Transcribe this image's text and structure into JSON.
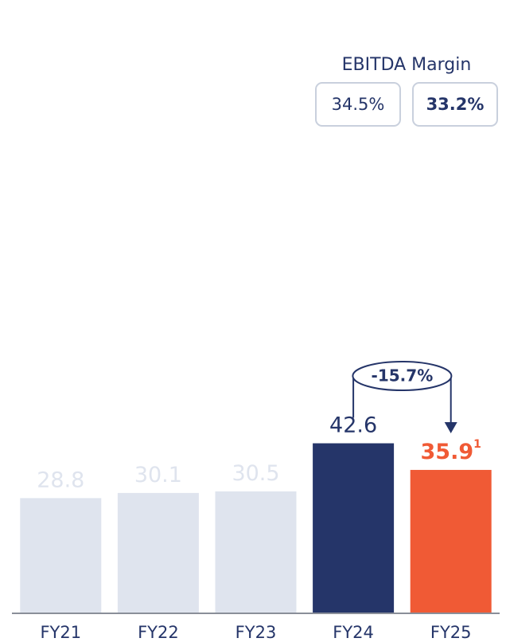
{
  "chart_data": {
    "type": "bar",
    "categories": [
      "FY21",
      "FY22",
      "FY23",
      "FY24",
      "FY25"
    ],
    "values": [
      28.8,
      30.1,
      30.5,
      42.6,
      35.9
    ],
    "value_label_notes": [
      null,
      null,
      null,
      null,
      "1"
    ],
    "colors": [
      "#dfe4ee",
      "#dfe4ee",
      "#dfe4ee",
      "#253569",
      "#f05a35"
    ],
    "label_colors": [
      "#dfe4ee",
      "#dfe4ee",
      "#dfe4ee",
      "#253569",
      "#f05a35"
    ],
    "ylim": [
      0,
      80
    ],
    "change_label": "-15.7%",
    "margin_title": "EBITDA Margin",
    "margin_labels": [
      "34.5%",
      "33.2%"
    ]
  }
}
